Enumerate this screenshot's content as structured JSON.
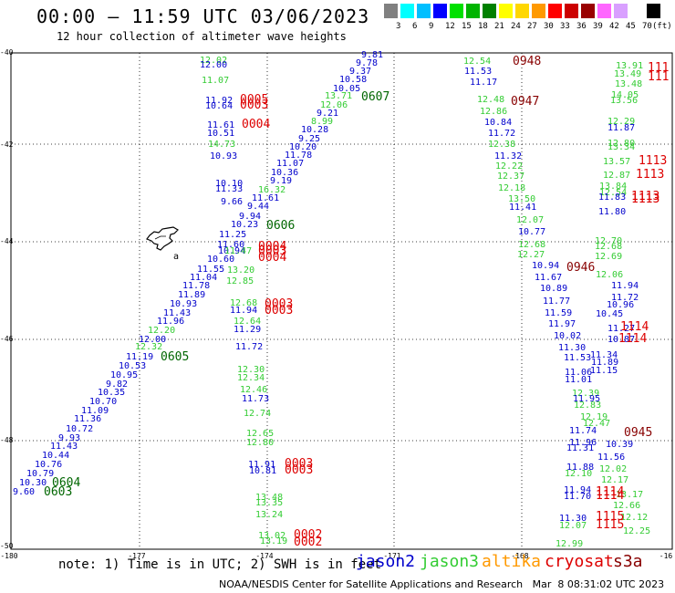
{
  "title": "00:00 – 11:59 UTC 03/06/2023",
  "subtitle": "12 hour collection of altimeter wave heights",
  "color_scale": {
    "unit_label": "(ft)",
    "labels": [
      "3",
      "6",
      "9",
      "12",
      "15",
      "18",
      "21",
      "24",
      "27",
      "30",
      "33",
      "36",
      "39",
      "42",
      "45",
      "70"
    ],
    "colors": [
      "#808080",
      "#00ffff",
      "#00bfff",
      "#0000ff",
      "#00e000",
      "#00b400",
      "#008000",
      "#ffff00",
      "#ffd700",
      "#ff9900",
      "#ff0000",
      "#cc0000",
      "#990000",
      "#ff66ff",
      "#d9a0ff",
      "#ffffff",
      "#000000"
    ]
  },
  "map": {
    "y_tick_labels": [
      "-40",
      "-42",
      "-44",
      "-46",
      "-48",
      "-50"
    ],
    "x_tick_labels": [
      "-180",
      "-177",
      "-174",
      "-171",
      "-168",
      "-16"
    ],
    "island_marker": "a"
  },
  "satellite_colors": {
    "jason2": "#0000cc",
    "jason3": "#33cc33",
    "altika": "#ff9900",
    "cryosat": "#dd0000",
    "s3a": "#880000",
    "pass": "#006600"
  },
  "observations": [
    {
      "t": "12.02",
      "c": "jason3"
    },
    {
      "t": "12.00",
      "c": "jason2"
    },
    {
      "t": "11.07",
      "c": "jason3"
    },
    {
      "t": "11.92",
      "c": "jason2"
    },
    {
      "t": "10.64",
      "c": "jason2"
    },
    {
      "t": "11.61",
      "c": "jason2"
    },
    {
      "t": "10.51",
      "c": "jason2"
    },
    {
      "t": "14.73",
      "c": "jason3"
    },
    {
      "t": "10.93",
      "c": "jason2"
    },
    {
      "t": "10.10",
      "c": "jason2"
    },
    {
      "t": "11.33",
      "c": "jason2"
    },
    {
      "t": "9.66",
      "c": "jason2"
    },
    {
      "t": "9.81",
      "c": "jason2"
    },
    {
      "t": "9.78",
      "c": "jason2"
    },
    {
      "t": "9.37",
      "c": "jason2"
    },
    {
      "t": "10.58",
      "c": "jason2"
    },
    {
      "t": "10.05",
      "c": "jason2"
    },
    {
      "t": "13.71",
      "c": "jason3"
    },
    {
      "t": "12.06",
      "c": "jason3"
    },
    {
      "t": "9.21",
      "c": "jason2"
    },
    {
      "t": "8.99",
      "c": "jason3"
    },
    {
      "t": "10.28",
      "c": "jason2"
    },
    {
      "t": "9.25",
      "c": "jason2"
    },
    {
      "t": "10.20",
      "c": "jason2"
    },
    {
      "t": "11.78",
      "c": "jason2"
    },
    {
      "t": "11.07",
      "c": "jason2"
    },
    {
      "t": "10.36",
      "c": "jason2"
    },
    {
      "t": "9.19",
      "c": "jason2"
    },
    {
      "t": "16.32",
      "c": "jason3"
    },
    {
      "t": "11.61",
      "c": "jason2"
    },
    {
      "t": "9.44",
      "c": "jason2"
    },
    {
      "t": "9.94",
      "c": "jason2"
    },
    {
      "t": "10.23",
      "c": "jason2"
    },
    {
      "t": "11.25",
      "c": "jason2"
    },
    {
      "t": "11.60",
      "c": "jason2"
    },
    {
      "t": "10.94",
      "c": "jason2"
    },
    {
      "t": "11.47",
      "c": "jason3"
    },
    {
      "t": "10.60",
      "c": "jason2"
    },
    {
      "t": "11.55",
      "c": "jason2"
    },
    {
      "t": "13.20",
      "c": "jason3"
    },
    {
      "t": "11.04",
      "c": "jason2"
    },
    {
      "t": "12.85",
      "c": "jason3"
    },
    {
      "t": "11.78",
      "c": "jason2"
    },
    {
      "t": "11.89",
      "c": "jason2"
    },
    {
      "t": "10.93",
      "c": "jason2"
    },
    {
      "t": "12.68",
      "c": "jason3"
    },
    {
      "t": "11.43",
      "c": "jason2"
    },
    {
      "t": "11.94",
      "c": "jason2"
    },
    {
      "t": "11.96",
      "c": "jason2"
    },
    {
      "t": "12.64",
      "c": "jason3"
    },
    {
      "t": "12.20",
      "c": "jason3"
    },
    {
      "t": "11.29",
      "c": "jason2"
    },
    {
      "t": "12.00",
      "c": "jason2"
    },
    {
      "t": "12.32",
      "c": "jason3"
    },
    {
      "t": "11.72",
      "c": "jason2"
    },
    {
      "t": "11.19",
      "c": "jason2"
    },
    {
      "t": "10.53",
      "c": "jason2"
    },
    {
      "t": "10.95",
      "c": "jason2"
    },
    {
      "t": "9.82",
      "c": "jason2"
    },
    {
      "t": "10.35",
      "c": "jason2"
    },
    {
      "t": "10.70",
      "c": "jason2"
    },
    {
      "t": "11.09",
      "c": "jason2"
    },
    {
      "t": "11.36",
      "c": "jason2"
    },
    {
      "t": "10.72",
      "c": "jason2"
    },
    {
      "t": "9.93",
      "c": "jason2"
    },
    {
      "t": "11.43",
      "c": "jason2"
    },
    {
      "t": "10.44",
      "c": "jason2"
    },
    {
      "t": "10.76",
      "c": "jason2"
    },
    {
      "t": "10.79",
      "c": "jason2"
    },
    {
      "t": "10.30",
      "c": "jason2"
    },
    {
      "t": "9.60",
      "c": "jason2"
    },
    {
      "t": "12.30",
      "c": "jason3"
    },
    {
      "t": "12.34",
      "c": "jason3"
    },
    {
      "t": "12.46",
      "c": "jason3"
    },
    {
      "t": "11.73",
      "c": "jason2"
    },
    {
      "t": "12.74",
      "c": "jason3"
    },
    {
      "t": "12.65",
      "c": "jason3"
    },
    {
      "t": "12.80",
      "c": "jason3"
    },
    {
      "t": "11.91",
      "c": "jason2"
    },
    {
      "t": "10.81",
      "c": "jason2"
    },
    {
      "t": "13.48",
      "c": "jason3"
    },
    {
      "t": "13.35",
      "c": "jason3"
    },
    {
      "t": "13.24",
      "c": "jason3"
    },
    {
      "t": "13.02",
      "c": "jason3"
    },
    {
      "t": "13.19",
      "c": "jason3"
    },
    {
      "t": "12.54",
      "c": "jason3"
    },
    {
      "t": "11.53",
      "c": "jason2"
    },
    {
      "t": "11.17",
      "c": "jason2"
    },
    {
      "t": "12.48",
      "c": "jason3"
    },
    {
      "t": "12.86",
      "c": "jason3"
    },
    {
      "t": "10.84",
      "c": "jason2"
    },
    {
      "t": "11.72",
      "c": "jason2"
    },
    {
      "t": "12.38",
      "c": "jason3"
    },
    {
      "t": "11.32",
      "c": "jason2"
    },
    {
      "t": "12.22",
      "c": "jason3"
    },
    {
      "t": "12.37",
      "c": "jason3"
    },
    {
      "t": "12.18",
      "c": "jason3"
    },
    {
      "t": "13.50",
      "c": "jason3"
    },
    {
      "t": "11.41",
      "c": "jason2"
    },
    {
      "t": "12.07",
      "c": "jason3"
    },
    {
      "t": "10.77",
      "c": "jason2"
    },
    {
      "t": "12.68",
      "c": "jason3"
    },
    {
      "t": "12.27",
      "c": "jason3"
    },
    {
      "t": "10.94",
      "c": "jason2"
    },
    {
      "t": "11.67",
      "c": "jason2"
    },
    {
      "t": "10.89",
      "c": "jason2"
    },
    {
      "t": "11.77",
      "c": "jason2"
    },
    {
      "t": "11.59",
      "c": "jason2"
    },
    {
      "t": "11.97",
      "c": "jason2"
    },
    {
      "t": "10.02",
      "c": "jason2"
    },
    {
      "t": "11.30",
      "c": "jason2"
    },
    {
      "t": "11.53",
      "c": "jason2"
    },
    {
      "t": "11.06",
      "c": "jason2"
    },
    {
      "t": "11.01",
      "c": "jason2"
    },
    {
      "t": "12.39",
      "c": "jason3"
    },
    {
      "t": "11.95",
      "c": "jason2"
    },
    {
      "t": "12.83",
      "c": "jason3"
    },
    {
      "t": "12.19",
      "c": "jason3"
    },
    {
      "t": "12.47",
      "c": "jason3"
    },
    {
      "t": "11.74",
      "c": "jason2"
    },
    {
      "t": "11.96",
      "c": "jason2"
    },
    {
      "t": "11.31",
      "c": "jason2"
    },
    {
      "t": "11.88",
      "c": "jason2"
    },
    {
      "t": "12.10",
      "c": "jason3"
    },
    {
      "t": "11.94",
      "c": "jason2"
    },
    {
      "t": "11.70",
      "c": "jason2"
    },
    {
      "t": "11.30",
      "c": "jason2"
    },
    {
      "t": "12.07",
      "c": "jason3"
    },
    {
      "t": "12.99",
      "c": "jason3"
    },
    {
      "t": "13.91",
      "c": "jason3"
    },
    {
      "t": "13.49",
      "c": "jason3"
    },
    {
      "t": "13.48",
      "c": "jason3"
    },
    {
      "t": "14.05",
      "c": "jason3"
    },
    {
      "t": "13.56",
      "c": "jason3"
    },
    {
      "t": "12.29",
      "c": "jason3"
    },
    {
      "t": "11.87",
      "c": "jason2"
    },
    {
      "t": "12.80",
      "c": "jason3"
    },
    {
      "t": "13.34",
      "c": "jason3"
    },
    {
      "t": "13.57",
      "c": "jason3"
    },
    {
      "t": "12.87",
      "c": "jason3"
    },
    {
      "t": "13.84",
      "c": "jason3"
    },
    {
      "t": "12.54",
      "c": "jason3"
    },
    {
      "t": "11.83",
      "c": "jason2"
    },
    {
      "t": "11.80",
      "c": "jason2"
    },
    {
      "t": "12.70",
      "c": "jason3"
    },
    {
      "t": "12.68",
      "c": "jason3"
    },
    {
      "t": "12.69",
      "c": "jason3"
    },
    {
      "t": "12.06",
      "c": "jason3"
    },
    {
      "t": "11.94",
      "c": "jason2"
    },
    {
      "t": "11.72",
      "c": "jason2"
    },
    {
      "t": "10.96",
      "c": "jason2"
    },
    {
      "t": "10.45",
      "c": "jason2"
    },
    {
      "t": "11.27",
      "c": "jason2"
    },
    {
      "t": "10.87",
      "c": "jason2"
    },
    {
      "t": "11.34",
      "c": "jason2"
    },
    {
      "t": "11.89",
      "c": "jason2"
    },
    {
      "t": "11.15",
      "c": "jason2"
    },
    {
      "t": "10.39",
      "c": "jason2"
    },
    {
      "t": "11.56",
      "c": "jason2"
    },
    {
      "t": "12.02",
      "c": "jason3"
    },
    {
      "t": "12.17",
      "c": "jason3"
    },
    {
      "t": "13.17",
      "c": "jason3"
    },
    {
      "t": "12.66",
      "c": "jason3"
    },
    {
      "t": "12.12",
      "c": "jason3"
    },
    {
      "t": "12.25",
      "c": "jason3"
    }
  ],
  "pass_labels": [
    {
      "t": "0005",
      "c": "cryosat"
    },
    {
      "t": "0003",
      "c": "cryosat"
    },
    {
      "t": "0004",
      "c": "cryosat"
    },
    {
      "t": "0607",
      "c": "pass"
    },
    {
      "t": "0606",
      "c": "pass"
    },
    {
      "t": "0004",
      "c": "cryosat"
    },
    {
      "t": "0003",
      "c": "cryosat"
    },
    {
      "t": "0004",
      "c": "cryosat"
    },
    {
      "t": "0003",
      "c": "cryosat"
    },
    {
      "t": "0003",
      "c": "cryosat"
    },
    {
      "t": "0605",
      "c": "pass"
    },
    {
      "t": "0604",
      "c": "pass"
    },
    {
      "t": "0603",
      "c": "pass"
    },
    {
      "t": "0003",
      "c": "cryosat"
    },
    {
      "t": "0003",
      "c": "cryosat"
    },
    {
      "t": "0002",
      "c": "cryosat"
    },
    {
      "t": "0002",
      "c": "cryosat"
    },
    {
      "t": "0948",
      "c": "s3a"
    },
    {
      "t": "0947",
      "c": "s3a"
    },
    {
      "t": "0946",
      "c": "s3a"
    },
    {
      "t": "0945",
      "c": "s3a"
    },
    {
      "t": "111",
      "c": "cryosat"
    },
    {
      "t": "111",
      "c": "cryosat"
    },
    {
      "t": "1113",
      "c": "cryosat"
    },
    {
      "t": "1113",
      "c": "cryosat"
    },
    {
      "t": "1113",
      "c": "cryosat"
    },
    {
      "t": "1113",
      "c": "cryosat"
    },
    {
      "t": "1114",
      "c": "cryosat"
    },
    {
      "t": "1114",
      "c": "cryosat"
    },
    {
      "t": "1114",
      "c": "cryosat"
    },
    {
      "t": "1114",
      "c": "cryosat"
    },
    {
      "t": "1115",
      "c": "cryosat"
    },
    {
      "t": "1115",
      "c": "cryosat"
    }
  ],
  "note": "note: 1) Time is in UTC; 2) SWH is in feet",
  "satellites": [
    {
      "name": "jason2",
      "color": "#0000cc"
    },
    {
      "name": "jason3",
      "color": "#33cc33"
    },
    {
      "name": "altika",
      "color": "#ff9900"
    },
    {
      "name": "cryosat",
      "color": "#dd0000"
    },
    {
      "name": "s3a",
      "color": "#880000"
    }
  ],
  "footer": "NOAA/NESDIS Center for Satellite Applications and Research   Mar  8 08:31:02 UTC 2023"
}
